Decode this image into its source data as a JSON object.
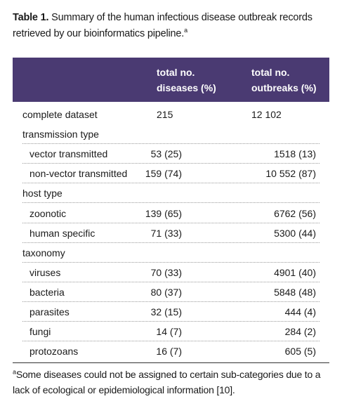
{
  "caption": {
    "label": "Table 1.",
    "text": "Summary of the human infectious disease outbreak records retrieved by our bioinformatics pipeline.",
    "sup": "a"
  },
  "header": {
    "col2_line1": "total no.",
    "col2_line2": "diseases (%)",
    "col3_line1": "total no.",
    "col3_line2": "outbreaks (%)"
  },
  "rows": [
    {
      "label": "complete dataset",
      "diseases": "215",
      "outbreaks": "12 102"
    },
    {
      "label": "transmission type"
    },
    {
      "label": "vector transmitted",
      "diseases": "53 (25)",
      "outbreaks": "1518 (13)"
    },
    {
      "label": "non-vector transmitted",
      "diseases": "159 (74)",
      "outbreaks": "10 552 (87)"
    },
    {
      "label": "host type"
    },
    {
      "label": "zoonotic",
      "diseases": "139 (65)",
      "outbreaks": "6762 (56)"
    },
    {
      "label": "human specific",
      "diseases": "71 (33)",
      "outbreaks": "5300 (44)"
    },
    {
      "label": "taxonomy"
    },
    {
      "label": "viruses",
      "diseases": "70 (33)",
      "outbreaks": "4901 (40)"
    },
    {
      "label": "bacteria",
      "diseases": "80 (37)",
      "outbreaks": "5848 (48)"
    },
    {
      "label": "parasites",
      "diseases": "32 (15)",
      "outbreaks": "444 (4)"
    },
    {
      "label": "fungi",
      "diseases": "14 (7)",
      "outbreaks": "284 (2)"
    },
    {
      "label": "protozoans",
      "diseases": "16 (7)",
      "outbreaks": "605 (5)"
    }
  ],
  "footnote": {
    "sup": "a",
    "text": "Some diseases could not be assigned to certain sub-categories due to a lack of ecological or epidemiological information [10]."
  }
}
